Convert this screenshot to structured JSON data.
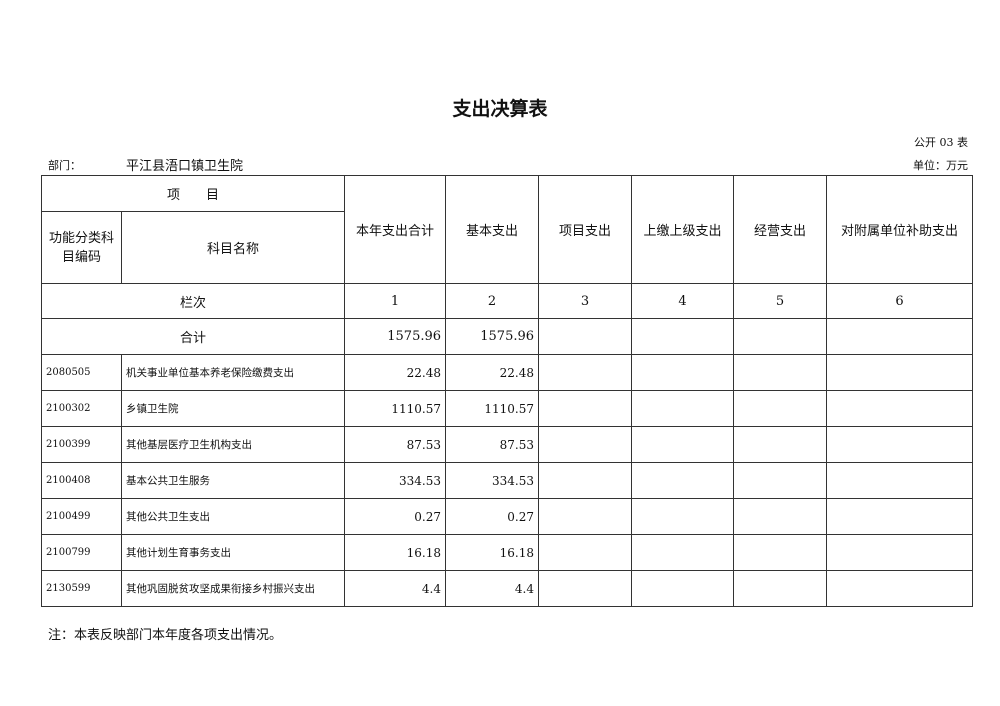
{
  "title": "支出决算表",
  "form_no": "公开 03 表",
  "department_label": "部门：",
  "department_name": "平江县浯口镇卫生院",
  "unit": "单位：万元",
  "header": {
    "item": "项　　目",
    "code": "功能分类科目编码",
    "name": "科目名称",
    "columns": [
      "本年支出合计",
      "基本支出",
      "项目支出",
      "上缴上级支出",
      "经营支出",
      "对附属单位补助支出"
    ]
  },
  "column_row": {
    "label": "栏次",
    "numbers": [
      "1",
      "2",
      "3",
      "4",
      "5",
      "6"
    ]
  },
  "total_row": {
    "label": "合计",
    "values": [
      "1575.96",
      "1575.96",
      "",
      "",
      "",
      ""
    ]
  },
  "rows": [
    {
      "code": "2080505",
      "name": "机关事业单位基本养老保险缴费支出",
      "values": [
        "22.48",
        "22.48",
        "",
        "",
        "",
        ""
      ]
    },
    {
      "code": "2100302",
      "name": "乡镇卫生院",
      "values": [
        "1110.57",
        "1110.57",
        "",
        "",
        "",
        ""
      ]
    },
    {
      "code": "2100399",
      "name": "其他基层医疗卫生机构支出",
      "values": [
        "87.53",
        "87.53",
        "",
        "",
        "",
        ""
      ]
    },
    {
      "code": "2100408",
      "name": "基本公共卫生服务",
      "values": [
        "334.53",
        "334.53",
        "",
        "",
        "",
        ""
      ]
    },
    {
      "code": "2100499",
      "name": "其他公共卫生支出",
      "values": [
        "0.27",
        "0.27",
        "",
        "",
        "",
        ""
      ]
    },
    {
      "code": "2100799",
      "name": "其他计划生育事务支出",
      "values": [
        "16.18",
        "16.18",
        "",
        "",
        "",
        ""
      ]
    },
    {
      "code": "2130599",
      "name": "其他巩固脱贫攻坚成果衔接乡村振兴支出",
      "values": [
        "4.4",
        "4.4",
        "",
        "",
        "",
        ""
      ]
    }
  ],
  "note": "注：本表反映部门本年度各项支出情况。"
}
